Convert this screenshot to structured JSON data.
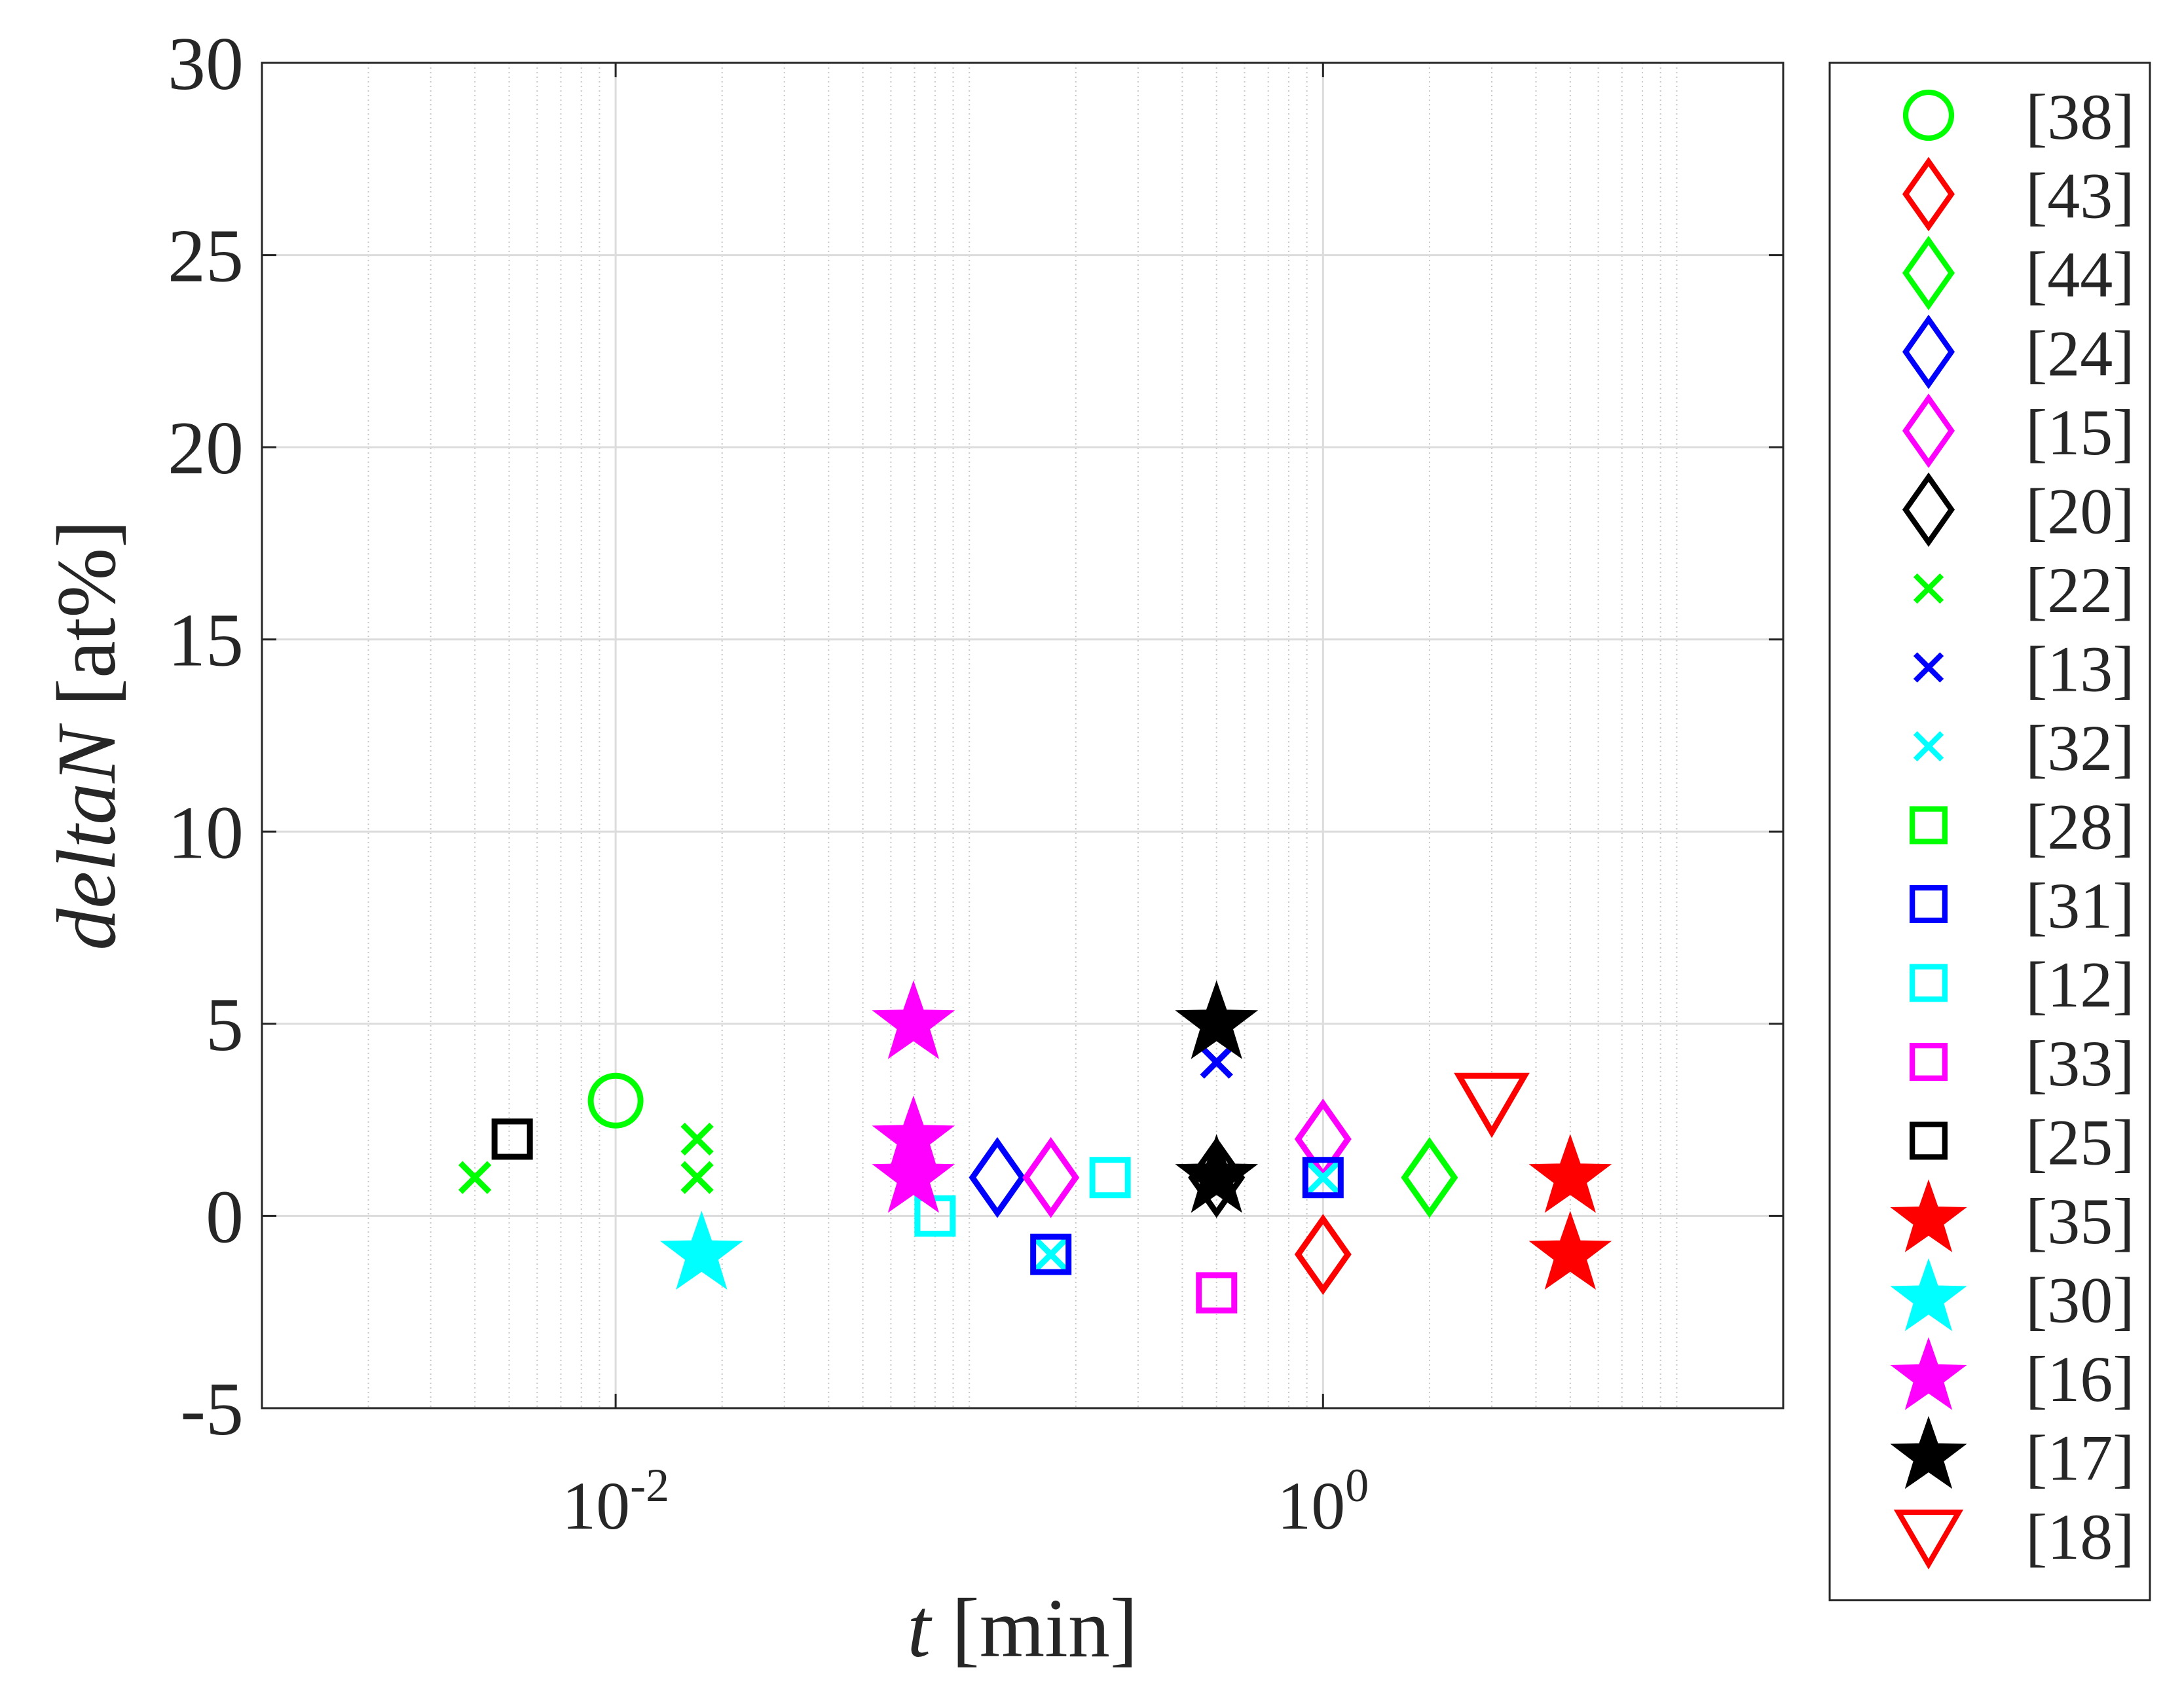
{
  "chart_data": {
    "type": "scatter",
    "x_label": "t [min]",
    "y_label": "deltaN [at%]",
    "xscale": "log",
    "xlim": [
      0.001,
      20
    ],
    "ylim": [
      -5,
      30
    ],
    "xticks": [
      {
        "value": 0.01,
        "label": "10^-2"
      },
      {
        "value": 1,
        "label": "10^0"
      }
    ],
    "xminorticks": [
      0.002,
      0.003,
      0.004,
      0.005,
      0.006,
      0.007,
      0.008,
      0.009,
      0.02,
      0.03,
      0.04,
      0.05,
      0.06,
      0.07,
      0.08,
      0.09,
      0.1,
      0.2,
      0.3,
      0.4,
      0.5,
      0.6,
      0.7,
      0.8,
      0.9,
      2,
      3,
      4,
      5,
      6,
      7,
      8,
      9,
      10
    ],
    "yticks": [
      -5,
      0,
      5,
      10,
      15,
      20,
      25,
      30
    ],
    "grid": true,
    "legend": "outside-right",
    "series": [
      {
        "name": "[38]",
        "color": "#00ff00",
        "marker": "circle",
        "x": [
          0.01
        ],
        "y": [
          3
        ]
      },
      {
        "name": "[43]",
        "color": "#ff0000",
        "marker": "diamond",
        "x": [
          1
        ],
        "y": [
          -1
        ]
      },
      {
        "name": "[44]",
        "color": "#00ff00",
        "marker": "diamond",
        "x": [
          2
        ],
        "y": [
          1
        ]
      },
      {
        "name": "[24]",
        "color": "#0000ff",
        "marker": "diamond",
        "x": [
          0.12
        ],
        "y": [
          1
        ]
      },
      {
        "name": "[15]",
        "color": "#ff00ff",
        "marker": "diamond",
        "x": [
          0.17,
          1
        ],
        "y": [
          1,
          2
        ]
      },
      {
        "name": "[20]",
        "color": "#000000",
        "marker": "diamond",
        "x": [
          0.5
        ],
        "y": [
          1
        ]
      },
      {
        "name": "[22]",
        "color": "#00ff00",
        "marker": "x",
        "x": [
          0.004,
          0.017,
          0.017
        ],
        "y": [
          1,
          2,
          1
        ]
      },
      {
        "name": "[13]",
        "color": "#0000ff",
        "marker": "x",
        "x": [
          0.5
        ],
        "y": [
          4
        ]
      },
      {
        "name": "[32]",
        "color": "#00ffff",
        "marker": "x",
        "x": [
          0.17,
          1
        ],
        "y": [
          -1,
          1
        ]
      },
      {
        "name": "[28]",
        "color": "#00ff00",
        "marker": "square",
        "x": [],
        "y": []
      },
      {
        "name": "[31]",
        "color": "#0000ff",
        "marker": "square",
        "x": [
          0.17,
          1
        ],
        "y": [
          -1,
          1
        ]
      },
      {
        "name": "[12]",
        "color": "#00ffff",
        "marker": "square",
        "x": [
          0.08,
          0.25
        ],
        "y": [
          0,
          1
        ]
      },
      {
        "name": "[33]",
        "color": "#ff00ff",
        "marker": "square",
        "x": [
          0.5
        ],
        "y": [
          -2
        ]
      },
      {
        "name": "[25]",
        "color": "#000000",
        "marker": "square",
        "x": [
          0.0051
        ],
        "y": [
          2
        ]
      },
      {
        "name": "[35]",
        "color": "#ff0000",
        "marker": "star",
        "x": [
          5,
          5
        ],
        "y": [
          1,
          -1
        ]
      },
      {
        "name": "[30]",
        "color": "#00ffff",
        "marker": "star",
        "x": [
          0.0175
        ],
        "y": [
          -1
        ]
      },
      {
        "name": "[16]",
        "color": "#ff00ff",
        "marker": "star",
        "x": [
          0.0695,
          0.0695,
          0.0695
        ],
        "y": [
          5,
          2,
          1
        ]
      },
      {
        "name": "[17]",
        "color": "#000000",
        "marker": "star",
        "x": [
          0.5,
          0.5
        ],
        "y": [
          5,
          1
        ]
      },
      {
        "name": "[18]",
        "color": "#ff0000",
        "marker": "triangle-down",
        "x": [
          3
        ],
        "y": [
          3
        ]
      }
    ]
  }
}
